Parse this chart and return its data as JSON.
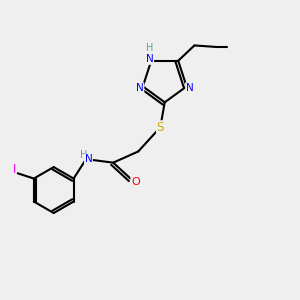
{
  "background_color": "#efefef",
  "bond_color": "#000000",
  "atom_colors": {
    "N": "#0000ff",
    "NH_ring": "#5f9ea0",
    "O": "#ff0000",
    "S": "#ccaa00",
    "I": "#ee00ee",
    "NH": "#5f9ea0"
  },
  "lw": 1.5
}
